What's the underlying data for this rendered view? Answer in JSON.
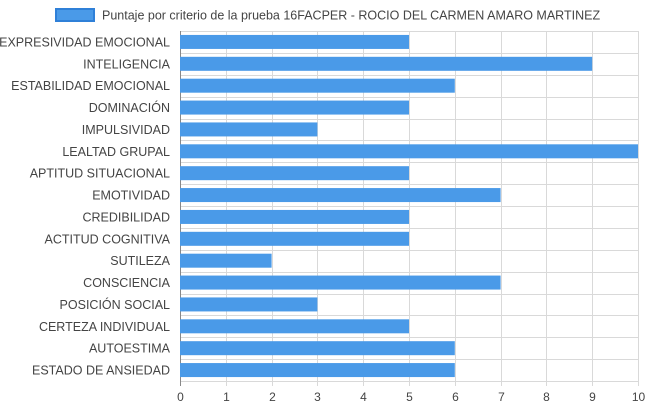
{
  "chart_data": {
    "type": "bar",
    "orientation": "horizontal",
    "legend": {
      "position": "top",
      "label": "Puntaje por criterio de la prueba 16FACPER - ROCIO DEL CARMEN AMARO MARTINEZ"
    },
    "categories": [
      "EXPRESIVIDAD EMOCIONAL",
      "INTELIGENCIA",
      "ESTABILIDAD EMOCIONAL",
      "DOMINACIÓN",
      "IMPULSIVIDAD",
      "LEALTAD GRUPAL",
      "APTITUD SITUACIONAL",
      "EMOTIVIDAD",
      "CREDIBILIDAD",
      "ACTITUD COGNITIVA",
      "SUTILEZA",
      "CONSCIENCIA",
      "POSICIÓN SOCIAL",
      "CERTEZA INDIVIDUAL",
      "AUTOESTIMA",
      "ESTADO DE ANSIEDAD"
    ],
    "series": [
      {
        "name": "Puntaje por criterio de la prueba 16FACPER - ROCIO DEL CARMEN AMARO MARTINEZ",
        "values": [
          5,
          9,
          6,
          5,
          3,
          10,
          5,
          7,
          5,
          5,
          2,
          7,
          3,
          5,
          6,
          6
        ]
      }
    ],
    "xlim": [
      0,
      10
    ],
    "xticks": [
      "0",
      "1",
      "2",
      "3",
      "4",
      "5",
      "6",
      "7",
      "8",
      "9",
      "10"
    ],
    "grid": true,
    "colors": {
      "bar_fill": "#4a9ae8",
      "bar_stroke": "#2f80d8",
      "grid": "#d9d9d9",
      "text": "#444444",
      "axis": "#888888"
    }
  }
}
